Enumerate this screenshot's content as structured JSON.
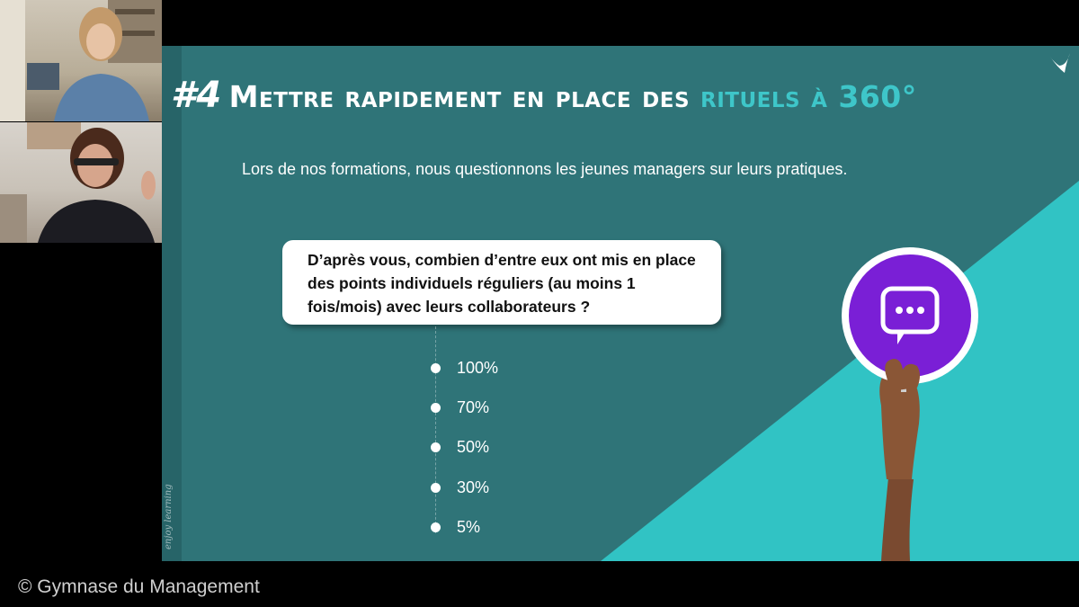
{
  "slide": {
    "title_number": "#4",
    "title_main": "Mettre rapidement en place des",
    "title_accent": "rituels à 360°",
    "subtitle": "Lors de nos formations, nous questionnons les jeunes managers sur leurs pratiques.",
    "question": "D’après vous, combien d’entre eux ont mis en place des points individuels réguliers (au moins 1 fois/mois) avec leurs collaborateurs ?",
    "options": [
      "100%",
      "70%",
      "50%",
      "30%",
      "5%"
    ],
    "watermark": "enjoy learning"
  },
  "footer": {
    "copyright": "© Gymnase du Management"
  },
  "colors": {
    "slide_bg": "#2f7478",
    "accent": "#3ec6c9",
    "badge": "#7a1fd6"
  },
  "icons": {
    "badge_icon": "chat-bubble-icon",
    "corner_icon": "leaf-logo-icon"
  }
}
